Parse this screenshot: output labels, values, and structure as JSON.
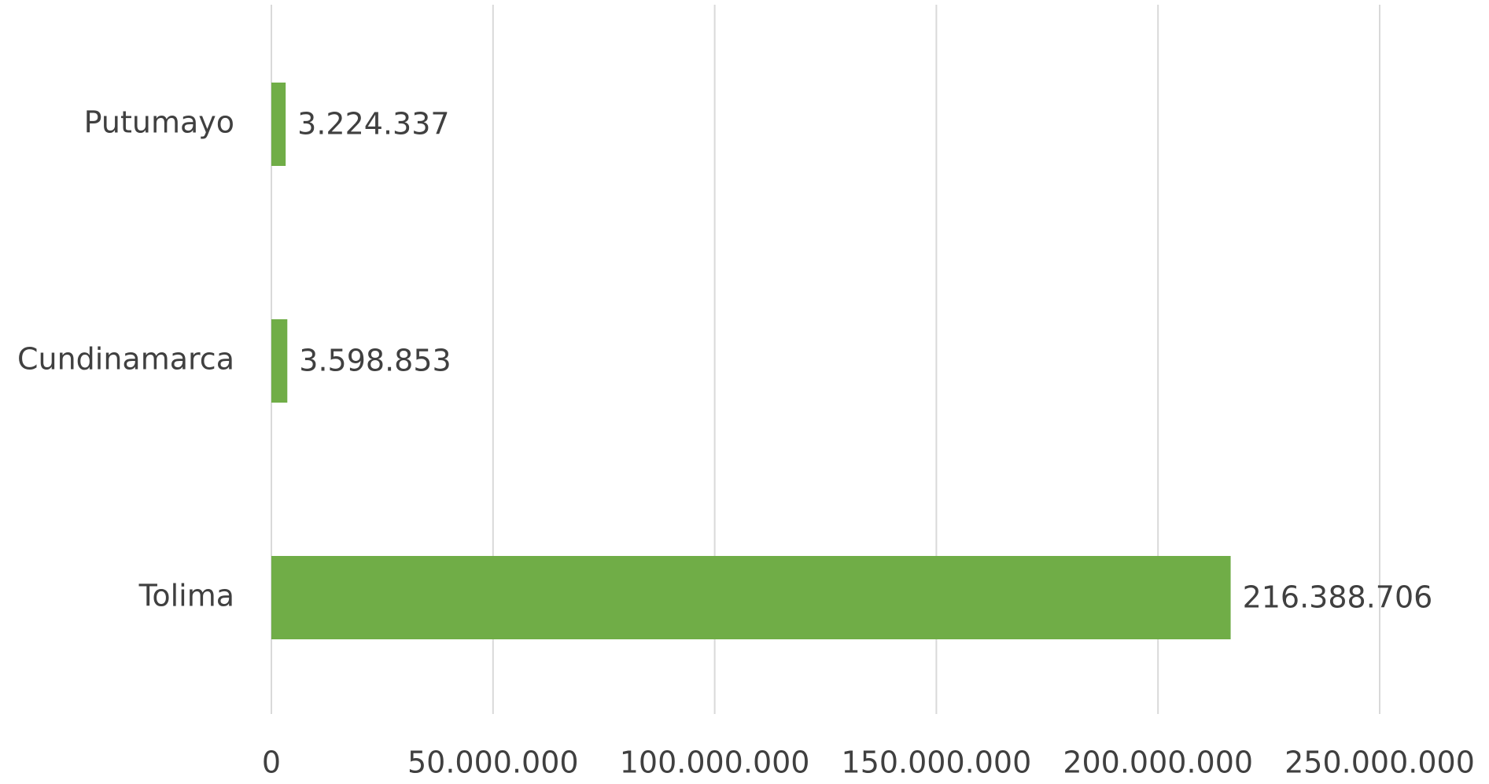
{
  "chart_data": {
    "type": "bar",
    "orientation": "horizontal",
    "categories": [
      "Putumayo",
      "Cundinamarca",
      "Tolima"
    ],
    "values": [
      3224337,
      3598853,
      216388706
    ],
    "value_labels": [
      "3.224.337",
      "3.598.853",
      "216.388.706"
    ],
    "color": "#70ad47",
    "xlim": [
      0,
      250000000
    ],
    "xticks": [
      0,
      {
        "value": 50000000,
        "label": "50.000.000"
      },
      {
        "value": 100000000,
        "label": "100.000.000"
      },
      {
        "value": 150000000,
        "label": "150.000.000"
      },
      {
        "value": 200000000,
        "label": "200.000.000"
      },
      {
        "value": 250000000,
        "label": "250.000.000"
      }
    ],
    "grid": true
  }
}
